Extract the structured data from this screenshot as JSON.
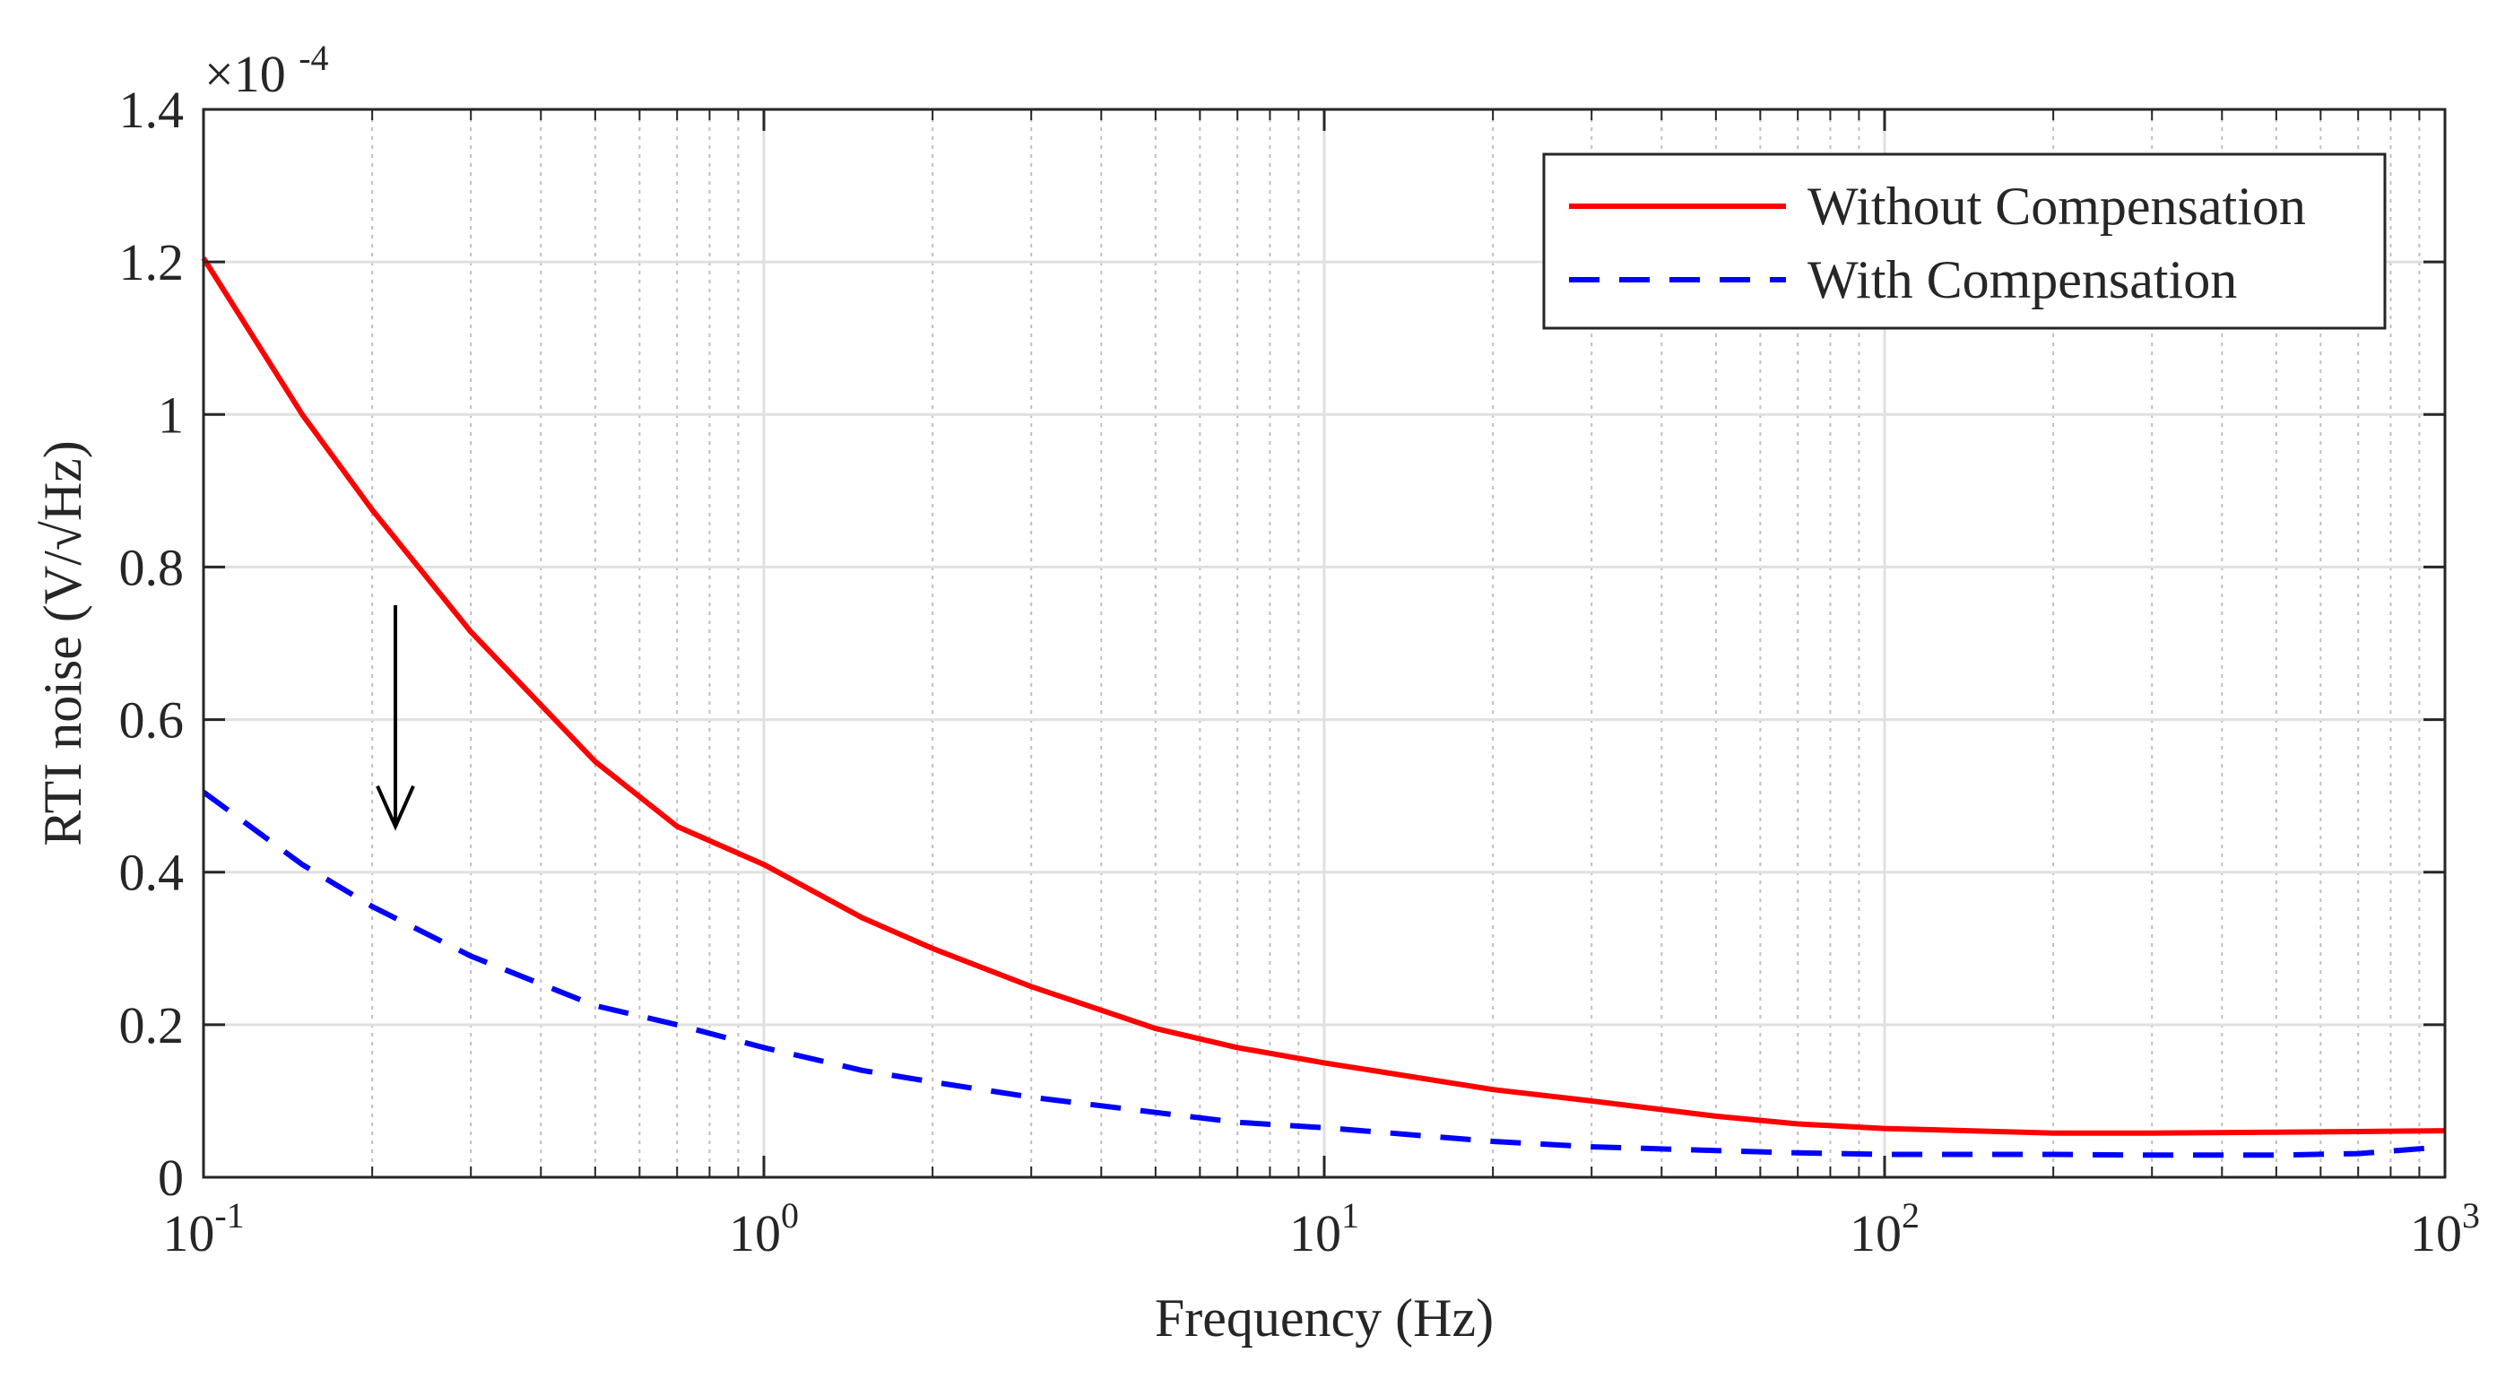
{
  "chart_data": {
    "type": "line",
    "xscale": "log",
    "xlim": [
      0.1,
      1000
    ],
    "ylim": [
      0,
      1.4
    ],
    "y_multiplier_label": {
      "base": "×10",
      "exponent": "-4"
    },
    "xlabel": "Frequency (Hz)",
    "ylabel": "RTI noise (V/√Hz)",
    "grid": true,
    "x_ticks": [
      {
        "value": 0.1,
        "base": "10",
        "exp": "-1"
      },
      {
        "value": 1,
        "base": "10",
        "exp": "0"
      },
      {
        "value": 10,
        "base": "10",
        "exp": "1"
      },
      {
        "value": 100,
        "base": "10",
        "exp": "2"
      },
      {
        "value": 1000,
        "base": "10",
        "exp": "3"
      }
    ],
    "y_ticks": [
      {
        "value": 0,
        "label": "0"
      },
      {
        "value": 0.2,
        "label": "0.2"
      },
      {
        "value": 0.4,
        "label": "0.4"
      },
      {
        "value": 0.6,
        "label": "0.6"
      },
      {
        "value": 0.8,
        "label": "0.8"
      },
      {
        "value": 1.0,
        "label": "1"
      },
      {
        "value": 1.2,
        "label": "1.2"
      },
      {
        "value": 1.4,
        "label": "1.4"
      }
    ],
    "legend_position": "top-right",
    "series": [
      {
        "name": "Without Compensation",
        "color": "#ff0000",
        "style": "solid",
        "x": [
          0.1,
          0.15,
          0.2,
          0.3,
          0.5,
          0.7,
          1,
          1.5,
          2,
          3,
          5,
          7,
          10,
          20,
          30,
          50,
          70,
          100,
          200,
          300,
          500,
          700,
          1000
        ],
        "y": [
          1.205,
          1.0,
          0.875,
          0.715,
          0.545,
          0.46,
          0.41,
          0.34,
          0.3,
          0.25,
          0.195,
          0.17,
          0.15,
          0.115,
          0.1,
          0.08,
          0.07,
          0.064,
          0.058,
          0.058,
          0.059,
          0.06,
          0.061
        ]
      },
      {
        "name": "With Compensation",
        "color": "#0000ff",
        "style": "dashed",
        "x": [
          0.1,
          0.15,
          0.2,
          0.3,
          0.5,
          0.7,
          1,
          1.5,
          2,
          3,
          5,
          7,
          10,
          20,
          30,
          50,
          70,
          100,
          200,
          300,
          500,
          700,
          1000
        ],
        "y": [
          0.505,
          0.41,
          0.355,
          0.29,
          0.225,
          0.2,
          0.17,
          0.14,
          0.125,
          0.105,
          0.085,
          0.072,
          0.065,
          0.047,
          0.04,
          0.035,
          0.032,
          0.03,
          0.03,
          0.029,
          0.029,
          0.031,
          0.04
        ]
      }
    ],
    "annotations": [
      {
        "type": "arrow",
        "direction": "down",
        "x": 0.22,
        "y_from": 0.75,
        "y_to": 0.46
      }
    ]
  }
}
